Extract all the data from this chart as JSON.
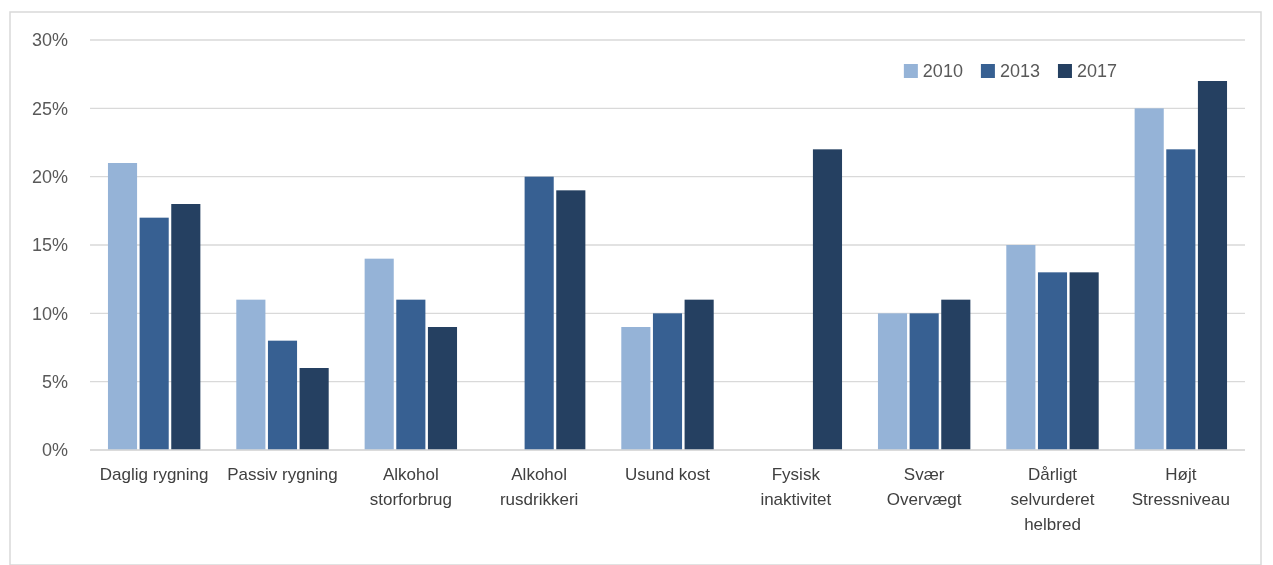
{
  "chart_data": {
    "type": "bar",
    "categories": [
      "Daglig rygning",
      "Passiv rygning",
      "Alkohol storforbrug",
      "Alkohol rusdrikkeri",
      "Usund kost",
      "Fysisk inaktivitet",
      "Svær Overvægt",
      "Dårligt selvurderet helbred",
      "Højt Stressniveau"
    ],
    "series": [
      {
        "name": "2010",
        "color": "#95b3d7",
        "values": [
          21,
          11,
          14,
          null,
          9,
          null,
          10,
          15,
          25
        ]
      },
      {
        "name": "2013",
        "color": "#376092",
        "values": [
          17,
          8,
          11,
          20,
          10,
          null,
          10,
          13,
          22
        ]
      },
      {
        "name": "2017",
        "color": "#254061",
        "values": [
          18,
          6,
          9,
          19,
          11,
          22,
          11,
          13,
          27
        ]
      }
    ],
    "ylim": [
      0,
      30
    ],
    "yticks": [
      {
        "value": 0,
        "label": "0%"
      },
      {
        "value": 5,
        "label": "5%"
      },
      {
        "value": 10,
        "label": "10%"
      },
      {
        "value": 15,
        "label": "15%"
      },
      {
        "value": 20,
        "label": "20%"
      },
      {
        "value": 25,
        "label": "25%"
      },
      {
        "value": 30,
        "label": "30%"
      }
    ],
    "grid": "y",
    "legend": "top right"
  }
}
